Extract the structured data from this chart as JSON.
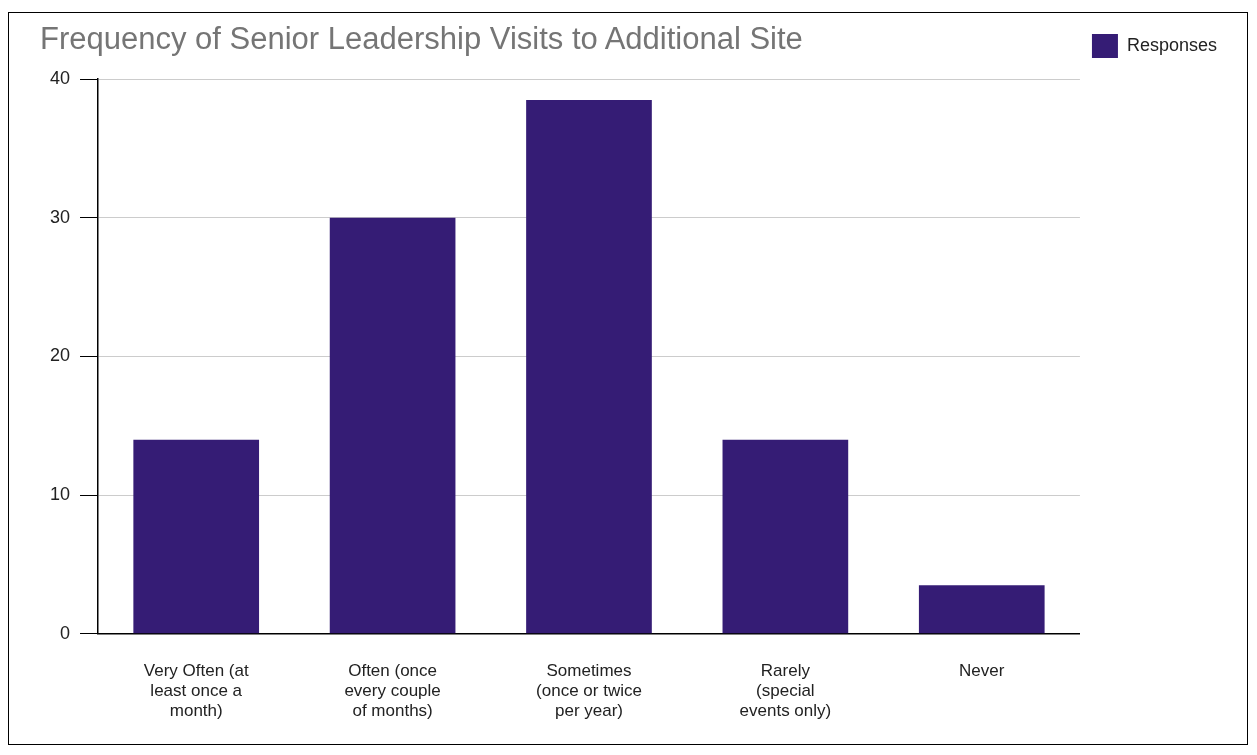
{
  "chart_data": {
    "type": "bar",
    "title": "Frequency of Senior Leadership Visits to Additional Site",
    "categories": [
      "Very Often (at least once a month)",
      "Often (once every couple of months)",
      "Sometimes (once or twice per year)",
      "Rarely (special events only)",
      "Never"
    ],
    "series": [
      {
        "name": "Responses",
        "color": "#351c75",
        "values": [
          14,
          30,
          38.5,
          14,
          3.5
        ]
      }
    ],
    "ylim": [
      0,
      40
    ],
    "yticks": [
      0,
      10,
      20,
      30,
      40
    ],
    "grid": "y",
    "legend": "top right"
  }
}
